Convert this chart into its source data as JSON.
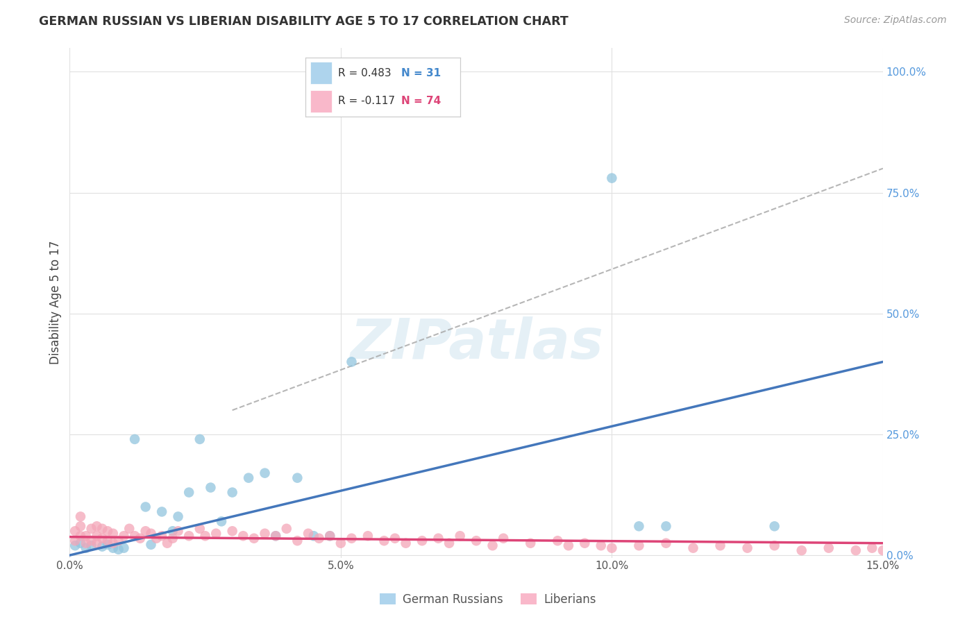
{
  "title": "GERMAN RUSSIAN VS LIBERIAN DISABILITY AGE 5 TO 17 CORRELATION CHART",
  "source": "Source: ZipAtlas.com",
  "ylabel_label": "Disability Age 5 to 17",
  "x_min": 0.0,
  "x_max": 0.15,
  "y_min": -0.005,
  "y_max": 1.05,
  "x_ticks": [
    0.0,
    0.05,
    0.1,
    0.15
  ],
  "x_tick_labels": [
    "0.0%",
    "5.0%",
    "10.0%",
    "15.0%"
  ],
  "y_ticks_right": [
    0.0,
    0.25,
    0.5,
    0.75,
    1.0
  ],
  "y_tick_labels_right": [
    "0.0%",
    "25.0%",
    "50.0%",
    "75.0%",
    "100.0%"
  ],
  "german_russian_color": "#92c5de",
  "liberian_color": "#f4a6b8",
  "german_russian_line_color": "#4477bb",
  "liberian_line_color": "#dd4477",
  "dashed_line_color": "#aaaaaa",
  "R_german": 0.483,
  "N_german": 31,
  "R_liberian": -0.117,
  "N_liberian": 74,
  "background_color": "#ffffff",
  "grid_color": "#e0e0e0",
  "watermark": "ZIPatlas",
  "legend_box_color_gr": "#aed4ed",
  "legend_box_color_lib": "#f9b8ca",
  "german_russian_x": [
    0.001,
    0.002,
    0.003,
    0.004,
    0.006,
    0.007,
    0.008,
    0.009,
    0.01,
    0.012,
    0.014,
    0.015,
    0.017,
    0.019,
    0.02,
    0.022,
    0.024,
    0.026,
    0.028,
    0.03,
    0.033,
    0.036,
    0.038,
    0.042,
    0.045,
    0.048,
    0.052,
    0.1,
    0.105,
    0.11,
    0.13
  ],
  "german_russian_y": [
    0.02,
    0.025,
    0.015,
    0.02,
    0.018,
    0.022,
    0.015,
    0.012,
    0.015,
    0.24,
    0.1,
    0.022,
    0.09,
    0.05,
    0.08,
    0.13,
    0.24,
    0.14,
    0.07,
    0.13,
    0.16,
    0.17,
    0.04,
    0.16,
    0.04,
    0.04,
    0.4,
    0.78,
    0.06,
    0.06,
    0.06
  ],
  "liberian_x": [
    0.001,
    0.001,
    0.002,
    0.002,
    0.002,
    0.003,
    0.003,
    0.004,
    0.004,
    0.005,
    0.005,
    0.005,
    0.006,
    0.006,
    0.007,
    0.007,
    0.008,
    0.008,
    0.009,
    0.01,
    0.011,
    0.012,
    0.013,
    0.014,
    0.015,
    0.016,
    0.017,
    0.018,
    0.019,
    0.02,
    0.022,
    0.024,
    0.025,
    0.027,
    0.03,
    0.032,
    0.034,
    0.036,
    0.038,
    0.04,
    0.042,
    0.044,
    0.046,
    0.048,
    0.05,
    0.052,
    0.055,
    0.058,
    0.06,
    0.062,
    0.065,
    0.068,
    0.07,
    0.072,
    0.075,
    0.078,
    0.08,
    0.085,
    0.09,
    0.092,
    0.095,
    0.098,
    0.1,
    0.105,
    0.11,
    0.115,
    0.12,
    0.125,
    0.13,
    0.135,
    0.14,
    0.145,
    0.148,
    0.15
  ],
  "liberian_y": [
    0.03,
    0.05,
    0.04,
    0.06,
    0.08,
    0.025,
    0.04,
    0.03,
    0.055,
    0.025,
    0.04,
    0.06,
    0.035,
    0.055,
    0.03,
    0.05,
    0.025,
    0.045,
    0.03,
    0.04,
    0.055,
    0.04,
    0.035,
    0.05,
    0.045,
    0.035,
    0.04,
    0.025,
    0.035,
    0.05,
    0.04,
    0.055,
    0.04,
    0.045,
    0.05,
    0.04,
    0.035,
    0.045,
    0.04,
    0.055,
    0.03,
    0.045,
    0.035,
    0.04,
    0.025,
    0.035,
    0.04,
    0.03,
    0.035,
    0.025,
    0.03,
    0.035,
    0.025,
    0.04,
    0.03,
    0.02,
    0.035,
    0.025,
    0.03,
    0.02,
    0.025,
    0.02,
    0.015,
    0.02,
    0.025,
    0.015,
    0.02,
    0.015,
    0.02,
    0.01,
    0.015,
    0.01,
    0.015,
    0.01
  ],
  "gr_line_x0": 0.0,
  "gr_line_y0": 0.0,
  "gr_line_x1": 0.15,
  "gr_line_y1": 0.4,
  "lib_line_x0": 0.0,
  "lib_line_y0": 0.038,
  "lib_line_x1": 0.15,
  "lib_line_y1": 0.025,
  "dash_line_x0": 0.03,
  "dash_line_y0": 0.3,
  "dash_line_x1": 0.15,
  "dash_line_y1": 0.8
}
